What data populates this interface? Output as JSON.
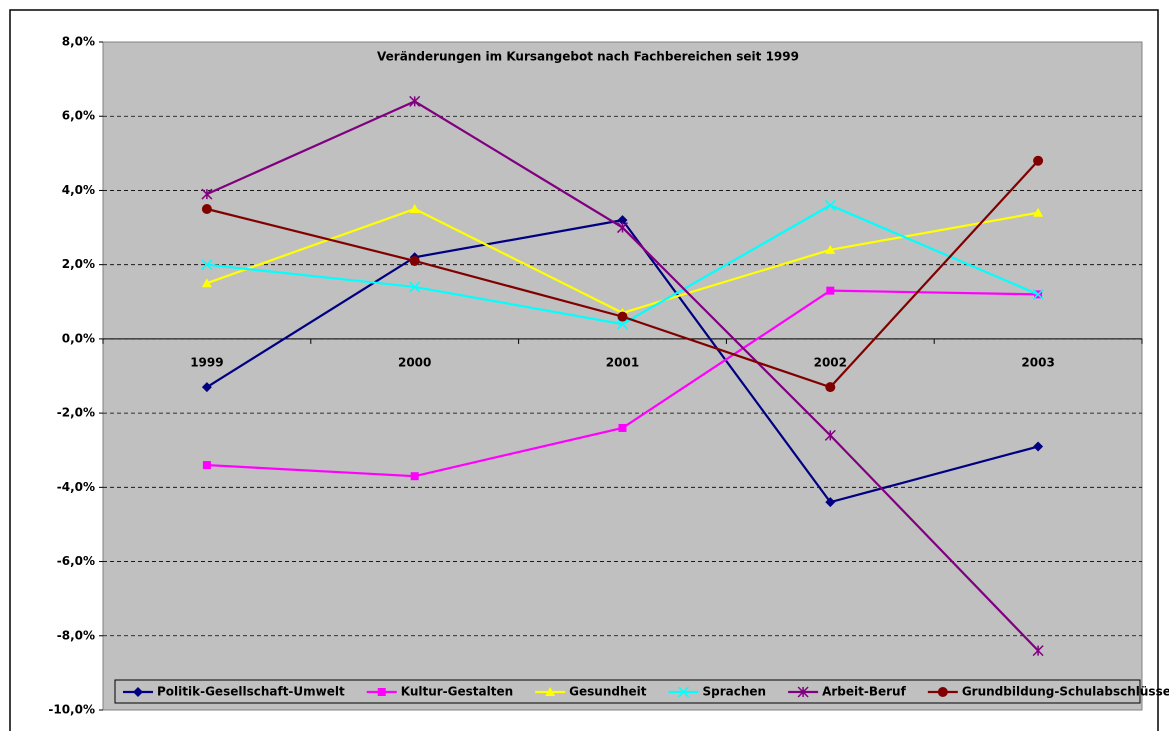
{
  "chart_data": {
    "type": "line",
    "title": "Veränderungen im Kursangebot nach Fachbereichen seit 1999",
    "categories": [
      "1999",
      "2000",
      "2001",
      "2002",
      "2003"
    ],
    "series": [
      {
        "name": "Politik-Gesellschaft-Umwelt",
        "color": "#000080",
        "marker": "diamond",
        "values": [
          -1.3,
          2.2,
          3.2,
          -4.4,
          -2.9
        ]
      },
      {
        "name": "Kultur-Gestalten",
        "color": "#FF00FF",
        "marker": "square",
        "values": [
          -3.4,
          -3.7,
          -2.4,
          1.3,
          1.2
        ]
      },
      {
        "name": "Gesundheit",
        "color": "#FFFF00",
        "marker": "triangle",
        "values": [
          1.5,
          3.5,
          0.7,
          2.4,
          3.4
        ]
      },
      {
        "name": "Sprachen",
        "color": "#00FFFF",
        "marker": "x",
        "values": [
          2.0,
          1.4,
          0.4,
          3.6,
          1.2
        ]
      },
      {
        "name": "Arbeit-Beruf",
        "color": "#800080",
        "marker": "star",
        "values": [
          3.9,
          6.4,
          3.0,
          -2.6,
          -8.4
        ]
      },
      {
        "name": "Grundbildung-Schulabschlüsse",
        "color": "#800000",
        "marker": "circle",
        "values": [
          3.5,
          2.1,
          0.6,
          -1.3,
          4.8
        ]
      }
    ],
    "ylim": [
      -10,
      8
    ],
    "yticks": [
      {
        "value": -10,
        "label": "-10,0%"
      },
      {
        "value": -8,
        "label": "-8,0%"
      },
      {
        "value": -6,
        "label": "-6,0%"
      },
      {
        "value": -4,
        "label": "-4,0%"
      },
      {
        "value": -2,
        "label": "-2,0%"
      },
      {
        "value": 0,
        "label": "0,0%"
      },
      {
        "value": 2,
        "label": "2,0%"
      },
      {
        "value": 4,
        "label": "4,0%"
      },
      {
        "value": 6,
        "label": "6,0%"
      },
      {
        "value": 8,
        "label": "8,0%"
      }
    ],
    "grid": true,
    "legend": "bottom"
  }
}
